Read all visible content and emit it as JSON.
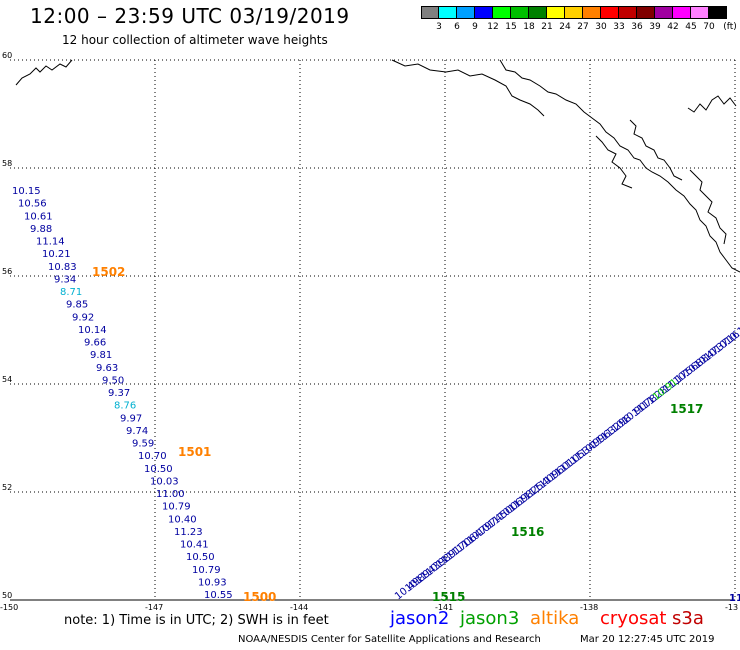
{
  "header": {
    "title": "12:00 – 23:59 UTC 03/19/2019",
    "subtitle": "12 hour collection of altimeter wave heights"
  },
  "legend": {
    "unit": "(ft)",
    "bins": [
      {
        "label": "3",
        "color": "#808080"
      },
      {
        "label": "6",
        "color": "#00ffff"
      },
      {
        "label": "9",
        "color": "#00a0ff"
      },
      {
        "label": "12",
        "color": "#0000ff"
      },
      {
        "label": "15",
        "color": "#00ff00"
      },
      {
        "label": "18",
        "color": "#00c000"
      },
      {
        "label": "21",
        "color": "#008000"
      },
      {
        "label": "24",
        "color": "#ffff00"
      },
      {
        "label": "27",
        "color": "#ffd000"
      },
      {
        "label": "30",
        "color": "#ff8000"
      },
      {
        "label": "33",
        "color": "#ff0000"
      },
      {
        "label": "36",
        "color": "#c00000"
      },
      {
        "label": "39",
        "color": "#800000"
      },
      {
        "label": "42",
        "color": "#a000a0"
      },
      {
        "label": "45",
        "color": "#ff00ff"
      },
      {
        "label": "70",
        "color": "#ff80ff"
      },
      {
        "label": "",
        "color": "#000000"
      }
    ]
  },
  "map": {
    "lon_range": [
      -150,
      -135
    ],
    "lat_range": [
      50,
      60
    ],
    "lat_labels": [
      "60",
      "58",
      "56",
      "54",
      "52",
      "50"
    ],
    "lon_labels": [
      "-150",
      "-147",
      "-144",
      "-141",
      "-138",
      "-13"
    ],
    "gridline_color": "#000000"
  },
  "tracks": {
    "west": {
      "color": "#0000a0",
      "highlight_color": "#00b0d0",
      "values": [
        "10.15",
        "10.56",
        "10.61",
        "9.88",
        "11.14",
        "10.21",
        "10.83",
        "9.34",
        "8.71",
        "9.85",
        "9.92",
        "10.14",
        "9.66",
        "9.81",
        "9.63",
        "9.50",
        "9.37",
        "8.76",
        "9.97",
        "9.74",
        "9.59",
        "10.70",
        "10.50",
        "10.03",
        "11.00",
        "10.79",
        "10.40",
        "11.23",
        "10.41",
        "10.50",
        "10.79",
        "10.93",
        "10.55"
      ],
      "highlight_indices": [
        8,
        17
      ]
    },
    "east": {
      "color": "#0000a0",
      "values": [
        "10.49",
        "10.89",
        "11.43",
        "10.98",
        "11.91",
        "11.70",
        "11.64",
        "10.79",
        "10.74",
        "11.50",
        "10.06",
        "11.98",
        "11.25",
        "11.40",
        "11.96",
        "11.01",
        "11.05",
        "11.34",
        "10.99",
        "11.63",
        "11.29",
        "10.8",
        "10.90",
        "11.78",
        "11.28",
        "10.91",
        "11.17",
        "10.56",
        "10.88",
        "10.47",
        "10.37",
        "10.16",
        "10.1"
      ],
      "highlight_index": 25,
      "highlight_color": "#00c000"
    },
    "labels": [
      {
        "text": "1502",
        "color": "#ff8000"
      },
      {
        "text": "1501",
        "color": "#ff8000"
      },
      {
        "text": "1500",
        "color": "#ff8000"
      },
      {
        "text": "1517",
        "color": "#008000"
      },
      {
        "text": "1516",
        "color": "#008000"
      },
      {
        "text": "1515",
        "color": "#008000"
      },
      {
        "text": "11",
        "color": "#0000a0"
      }
    ]
  },
  "footer": {
    "note": "note:  1) Time is in UTC;  2) SWH is in feet",
    "satellites": [
      {
        "name": "jason2",
        "color": "#0000ff"
      },
      {
        "name": "jason3",
        "color": "#00a000"
      },
      {
        "name": "altika",
        "color": "#ff8000"
      },
      {
        "name": "cryosat",
        "color": "#ff0000"
      },
      {
        "name": "s3a",
        "color": "#c00000"
      }
    ],
    "credit": "NOAA/NESDIS Center for Satellite Applications and Research",
    "timestamp": "Mar 20 12:27:45 UTC 2019"
  }
}
